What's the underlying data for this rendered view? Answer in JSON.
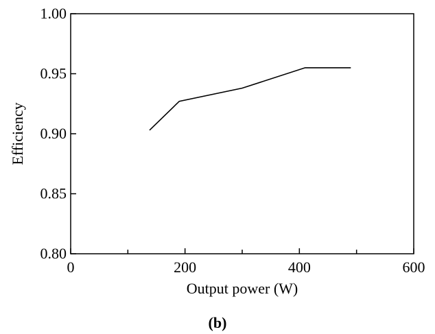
{
  "chart_data": {
    "type": "line",
    "xlabel": "Output power (W)",
    "ylabel": "Efficiency",
    "caption": "(b)",
    "xlim": [
      0,
      600
    ],
    "ylim": [
      0.8,
      1.0
    ],
    "x_ticks": [
      0,
      200,
      400,
      600
    ],
    "x_tick_labels": [
      "0",
      "200",
      "400",
      "600"
    ],
    "x_minor_ticks": [
      100,
      300,
      500
    ],
    "y_ticks": [
      0.8,
      0.85,
      0.9,
      0.95,
      1.0
    ],
    "y_tick_labels": [
      "0.80",
      "0.85",
      "0.90",
      "0.95",
      "1.00"
    ],
    "grid": false,
    "series": [
      {
        "color": "#000000",
        "x": [
          138,
          190,
          300,
          410,
          490
        ],
        "y": [
          0.903,
          0.927,
          0.938,
          0.955,
          0.955
        ]
      }
    ]
  }
}
